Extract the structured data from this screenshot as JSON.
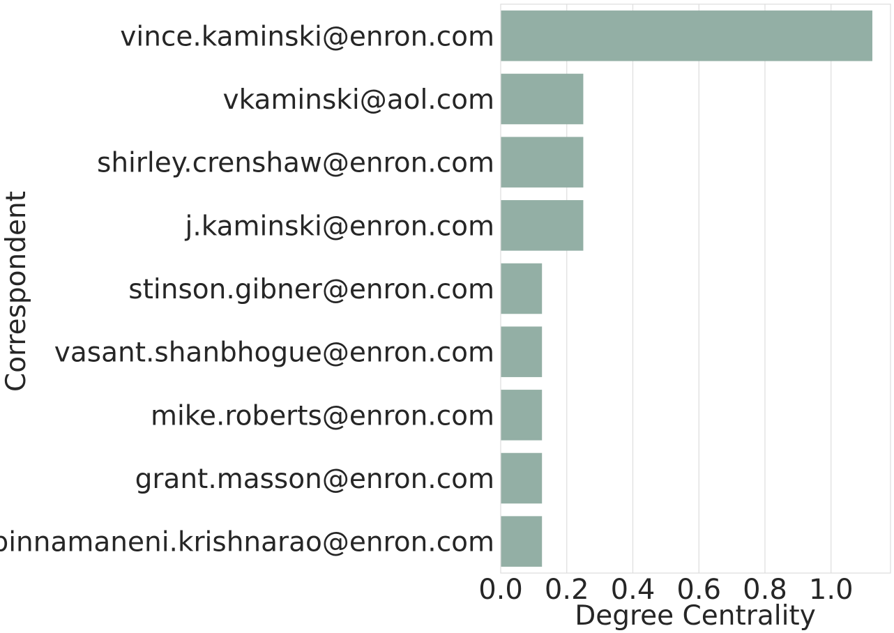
{
  "chart_data": {
    "type": "bar",
    "orientation": "horizontal",
    "title": "",
    "xlabel": "Degree Centrality",
    "ylabel": "Correspondent",
    "categories": [
      "vince.kaminski@enron.com",
      "vkaminski@aol.com",
      "shirley.crenshaw@enron.com",
      "j.kaminski@enron.com",
      "stinson.gibner@enron.com",
      "vasant.shanbhogue@enron.com",
      "mike.roberts@enron.com",
      "grant.masson@enron.com",
      "pinnamaneni.krishnarao@enron.com"
    ],
    "values": [
      1.125,
      0.25,
      0.25,
      0.25,
      0.125,
      0.125,
      0.125,
      0.125,
      0.125
    ],
    "xlim": [
      0,
      1.18
    ],
    "xticks": [
      "0.0",
      "0.2",
      "0.4",
      "0.6",
      "0.8",
      "1.0"
    ],
    "xtick_values": [
      0.0,
      0.2,
      0.4,
      0.6,
      0.8,
      1.0
    ],
    "grid": "vertical",
    "bar_color": "#93afa5",
    "grid_color": "#dddddd",
    "text_color": "#262626"
  }
}
